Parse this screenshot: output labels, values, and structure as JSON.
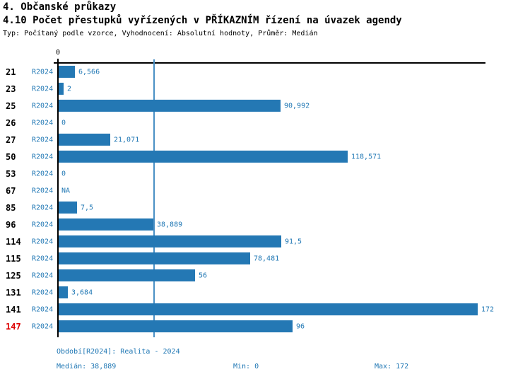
{
  "header": {
    "title_line1": "4. Občanské průkazy",
    "title_line2": "4.10 Počet přestupků vyřízených v PŘÍKAZNÍM řízení na úvazek agendy",
    "meta_line": "Typ: Počítaný podle vzorce, Vyhodnocení: Absolutní hodnoty, Průměr: Medián"
  },
  "chart_data": {
    "type": "bar",
    "orientation": "horizontal",
    "title": "4.10 Počet přestupků vyřízených v PŘÍKAZNÍM řízení na úvazek agendy",
    "categories": [
      "21",
      "23",
      "25",
      "26",
      "27",
      "50",
      "53",
      "67",
      "85",
      "96",
      "114",
      "115",
      "125",
      "131",
      "141",
      "147"
    ],
    "series": [
      {
        "name": "R2024",
        "values": [
          6.566,
          2,
          90.992,
          0,
          21.071,
          118.571,
          0,
          null,
          7.5,
          38.889,
          91.5,
          78.481,
          56,
          3.684,
          172,
          96
        ],
        "value_labels": [
          "6,566",
          "2",
          "90,992",
          "0",
          "21,071",
          "118,571",
          "0",
          "NA",
          "7,5",
          "38,889",
          "91,5",
          "78,481",
          "56",
          "3,684",
          "172",
          "96"
        ]
      }
    ],
    "x_axis": {
      "min": 0,
      "max": 172,
      "origin_tick_label": "0"
    },
    "median_line": {
      "value": 38.889
    },
    "highlighted_category": "147",
    "grid": "median-line-only",
    "legend_position": "none",
    "colors": {
      "bar": "#2478b4",
      "median_line": "#4a90c5",
      "value_text": "#1f77b4",
      "highlighted_category_text": "#dd0000",
      "axis": "#000000"
    }
  },
  "footer": {
    "period_label": "Období[R2024]: Realita - 2024",
    "median_label": "Medián: 38,889",
    "min_label": "Min: 0",
    "max_label": "Max: 172"
  }
}
